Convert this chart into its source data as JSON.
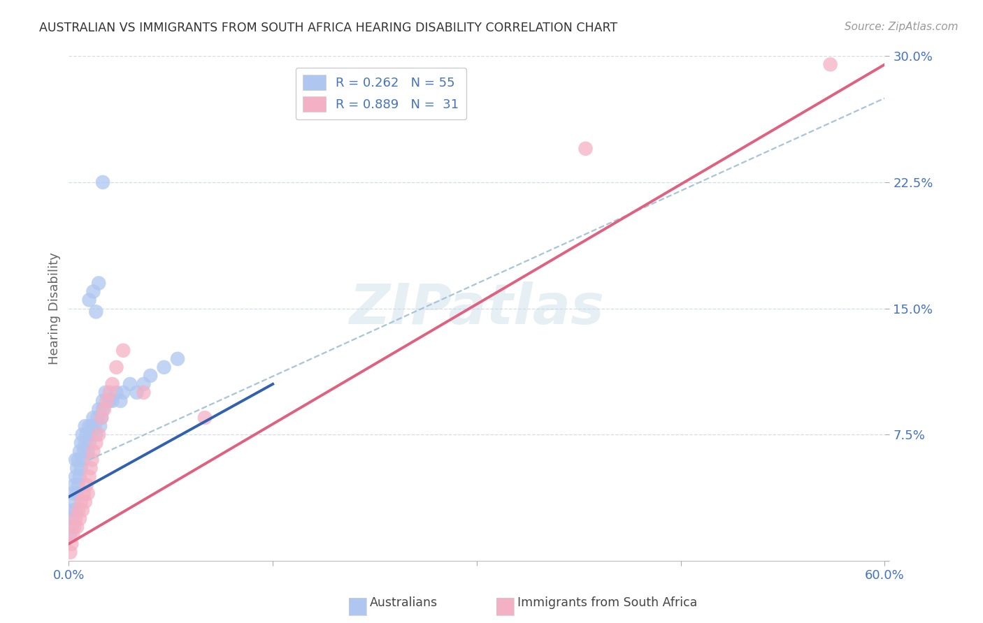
{
  "title": "AUSTRALIAN VS IMMIGRANTS FROM SOUTH AFRICA HEARING DISABILITY CORRELATION CHART",
  "source": "Source: ZipAtlas.com",
  "tick_color": "#4472c4",
  "ylabel": "Hearing Disability",
  "xlim": [
    0.0,
    0.6
  ],
  "ylim": [
    0.0,
    0.3
  ],
  "xtick_vals": [
    0.0,
    0.15,
    0.3,
    0.45,
    0.6
  ],
  "xtick_labels": [
    "0.0%",
    "",
    "",
    "",
    "60.0%"
  ],
  "ytick_vals": [
    0.0,
    0.075,
    0.15,
    0.225,
    0.3
  ],
  "ytick_labels": [
    "",
    "7.5%",
    "15.0%",
    "22.5%",
    "30.0%"
  ],
  "watermark": "ZIPatlas",
  "legend1_label": "R = 0.262   N = 55",
  "legend2_label": "R = 0.889   N =  31",
  "legend_color": "#4472c4",
  "aus_color": "#aec6f0",
  "sa_color": "#f4b0c4",
  "aus_line_color": "#3060b0",
  "sa_line_color": "#e06080",
  "dashed_line_color": "#a8c4d8",
  "background_color": "#ffffff",
  "grid_color": "#d4dce4",
  "aus_points_x": [
    0.001,
    0.002,
    0.002,
    0.003,
    0.003,
    0.004,
    0.004,
    0.005,
    0.005,
    0.005,
    0.006,
    0.006,
    0.007,
    0.007,
    0.008,
    0.008,
    0.009,
    0.009,
    0.01,
    0.01,
    0.011,
    0.012,
    0.012,
    0.013,
    0.014,
    0.015,
    0.015,
    0.016,
    0.017,
    0.018,
    0.019,
    0.02,
    0.021,
    0.022,
    0.023,
    0.024,
    0.025,
    0.025,
    0.027,
    0.03,
    0.032,
    0.035,
    0.038,
    0.04,
    0.045,
    0.05,
    0.055,
    0.06,
    0.07,
    0.08,
    0.025,
    0.02,
    0.015,
    0.018,
    0.022
  ],
  "aus_points_y": [
    0.015,
    0.02,
    0.03,
    0.025,
    0.04,
    0.035,
    0.045,
    0.03,
    0.05,
    0.06,
    0.04,
    0.055,
    0.045,
    0.06,
    0.05,
    0.065,
    0.055,
    0.07,
    0.06,
    0.075,
    0.065,
    0.07,
    0.08,
    0.075,
    0.065,
    0.07,
    0.08,
    0.075,
    0.08,
    0.085,
    0.08,
    0.075,
    0.085,
    0.09,
    0.08,
    0.085,
    0.09,
    0.095,
    0.1,
    0.095,
    0.095,
    0.1,
    0.095,
    0.1,
    0.105,
    0.1,
    0.105,
    0.11,
    0.115,
    0.12,
    0.225,
    0.148,
    0.155,
    0.16,
    0.165
  ],
  "sa_points_x": [
    0.001,
    0.002,
    0.003,
    0.004,
    0.005,
    0.006,
    0.007,
    0.008,
    0.009,
    0.01,
    0.011,
    0.012,
    0.013,
    0.014,
    0.015,
    0.016,
    0.017,
    0.018,
    0.02,
    0.022,
    0.024,
    0.026,
    0.028,
    0.03,
    0.032,
    0.035,
    0.04,
    0.055,
    0.1,
    0.38,
    0.56
  ],
  "sa_points_y": [
    0.005,
    0.01,
    0.015,
    0.02,
    0.025,
    0.02,
    0.03,
    0.025,
    0.035,
    0.03,
    0.04,
    0.035,
    0.045,
    0.04,
    0.05,
    0.055,
    0.06,
    0.065,
    0.07,
    0.075,
    0.085,
    0.09,
    0.095,
    0.1,
    0.105,
    0.115,
    0.125,
    0.1,
    0.085,
    0.245,
    0.295
  ],
  "aus_line_x": [
    0.0,
    0.15
  ],
  "aus_line_y": [
    0.038,
    0.105
  ],
  "sa_line_x": [
    0.0,
    0.6
  ],
  "sa_line_y": [
    0.01,
    0.295
  ],
  "dash_line_x": [
    0.015,
    0.6
  ],
  "dash_line_y": [
    0.06,
    0.275
  ]
}
